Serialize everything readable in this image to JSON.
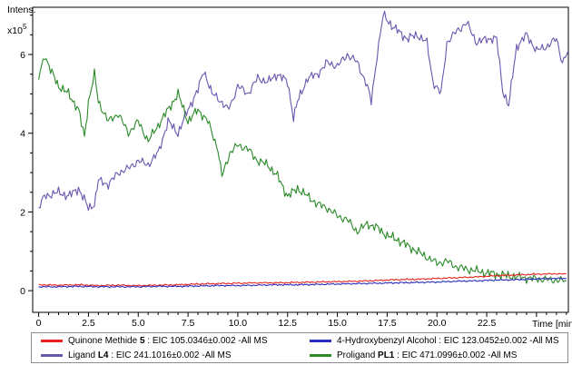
{
  "chart_data": {
    "type": "line",
    "ylabel": "Intens.",
    "y_multiplier": "x10",
    "y_multiplier_exp": "5",
    "xlabel": "Time [min]",
    "xlim": [
      -0.3,
      26.6
    ],
    "ylim": [
      -0.55,
      7.2
    ],
    "x_ticks": [
      "0",
      "2.5",
      "5.0",
      "7.5",
      "10.0",
      "12.5",
      "15.0",
      "17.5",
      "20.0",
      "22.5"
    ],
    "y_ticks": [
      "0",
      "2",
      "4",
      "6"
    ],
    "grid": false,
    "legend_position": "bottom",
    "series": [
      {
        "name": "Quinone Methide 5",
        "legend_parts": [
          "Quinone Methide ",
          "5",
          " : EIC 105.0346±0.002 -All MS"
        ],
        "color": "#e8231f",
        "points": [
          [
            0,
            0.15
          ],
          [
            1,
            0.14
          ],
          [
            2,
            0.15
          ],
          [
            3,
            0.13
          ],
          [
            4,
            0.14
          ],
          [
            5,
            0.13
          ],
          [
            6,
            0.14
          ],
          [
            7,
            0.15
          ],
          [
            8,
            0.17
          ],
          [
            9,
            0.18
          ],
          [
            10,
            0.19
          ],
          [
            11,
            0.2
          ],
          [
            12,
            0.2
          ],
          [
            13,
            0.21
          ],
          [
            14,
            0.22
          ],
          [
            15,
            0.23
          ],
          [
            16,
            0.24
          ],
          [
            17,
            0.26
          ],
          [
            18,
            0.28
          ],
          [
            19,
            0.29
          ],
          [
            20,
            0.31
          ],
          [
            21,
            0.33
          ],
          [
            22,
            0.35
          ],
          [
            23,
            0.38
          ],
          [
            24,
            0.4
          ],
          [
            25,
            0.42
          ],
          [
            26,
            0.43
          ],
          [
            26.5,
            0.42
          ]
        ]
      },
      {
        "name": "4-Hydroxybenzyl Alcohol",
        "legend_parts": [
          "4-Hydroxybenzyl Alcohol : EIC 123.0452±0.002 -All MS"
        ],
        "color": "#2b2bbf",
        "points": [
          [
            0,
            0.1
          ],
          [
            1,
            0.1
          ],
          [
            2,
            0.11
          ],
          [
            3,
            0.1
          ],
          [
            4,
            0.1
          ],
          [
            5,
            0.1
          ],
          [
            6,
            0.11
          ],
          [
            7,
            0.11
          ],
          [
            8,
            0.12
          ],
          [
            9,
            0.13
          ],
          [
            10,
            0.13
          ],
          [
            11,
            0.14
          ],
          [
            12,
            0.15
          ],
          [
            13,
            0.15
          ],
          [
            14,
            0.16
          ],
          [
            15,
            0.17
          ],
          [
            16,
            0.18
          ],
          [
            17,
            0.19
          ],
          [
            18,
            0.2
          ],
          [
            19,
            0.21
          ],
          [
            20,
            0.22
          ],
          [
            21,
            0.24
          ],
          [
            22,
            0.25
          ],
          [
            23,
            0.27
          ],
          [
            24,
            0.28
          ],
          [
            25,
            0.3
          ],
          [
            26,
            0.31
          ],
          [
            26.5,
            0.31
          ]
        ]
      },
      {
        "name": "Ligand L4",
        "legend_parts": [
          "Ligand ",
          "L4",
          " : EIC 241.1016±0.002 -All MS"
        ],
        "color": "#6b56b0",
        "points": [
          [
            0,
            2.1
          ],
          [
            0.3,
            2.4
          ],
          [
            1,
            2.5
          ],
          [
            1.5,
            2.4
          ],
          [
            2,
            2.6
          ],
          [
            2.5,
            2.1
          ],
          [
            2.8,
            2.2
          ],
          [
            3,
            2.8
          ],
          [
            3.5,
            2.7
          ],
          [
            4,
            3.0
          ],
          [
            4.5,
            3.1
          ],
          [
            5,
            3.3
          ],
          [
            5.5,
            3.2
          ],
          [
            6,
            3.5
          ],
          [
            6.5,
            4.3
          ],
          [
            7,
            4.0
          ],
          [
            7.5,
            4.6
          ],
          [
            8,
            5.1
          ],
          [
            8.3,
            5.6
          ],
          [
            8.7,
            5.0
          ],
          [
            9,
            4.9
          ],
          [
            9.5,
            4.6
          ],
          [
            9.7,
            4.8
          ],
          [
            10,
            5.2
          ],
          [
            10.5,
            5.0
          ],
          [
            11,
            5.4
          ],
          [
            11.5,
            5.3
          ],
          [
            12,
            5.5
          ],
          [
            12.5,
            5.3
          ],
          [
            12.8,
            4.4
          ],
          [
            13,
            4.8
          ],
          [
            13.5,
            5.4
          ],
          [
            14,
            5.5
          ],
          [
            14.5,
            5.8
          ],
          [
            15,
            5.7
          ],
          [
            15.5,
            6.0
          ],
          [
            16,
            5.8
          ],
          [
            16.5,
            5.2
          ],
          [
            16.7,
            4.8
          ],
          [
            17,
            6.0
          ],
          [
            17.3,
            7.0
          ],
          [
            17.8,
            6.7
          ],
          [
            18.5,
            6.4
          ],
          [
            19,
            6.5
          ],
          [
            19.5,
            6.3
          ],
          [
            19.8,
            5.3
          ],
          [
            20.2,
            5.0
          ],
          [
            20.5,
            6.3
          ],
          [
            21,
            6.6
          ],
          [
            21.5,
            6.8
          ],
          [
            22,
            6.3
          ],
          [
            22.5,
            6.4
          ],
          [
            23,
            6.4
          ],
          [
            23.3,
            5.1
          ],
          [
            23.6,
            4.7
          ],
          [
            24,
            6.2
          ],
          [
            24.5,
            6.5
          ],
          [
            25,
            6.1
          ],
          [
            25.5,
            6.2
          ],
          [
            26,
            6.4
          ],
          [
            26.3,
            5.8
          ],
          [
            26.6,
            6.1
          ]
        ]
      },
      {
        "name": "Proligand PL1",
        "legend_parts": [
          "Proligand ",
          "PL1",
          " : EIC 471.0996±0.002 -All MS"
        ],
        "color": "#2a8a2a",
        "points": [
          [
            0,
            5.4
          ],
          [
            0.3,
            6.0
          ],
          [
            0.6,
            5.6
          ],
          [
            1,
            5.2
          ],
          [
            1.5,
            5.0
          ],
          [
            2,
            4.6
          ],
          [
            2.3,
            3.9
          ],
          [
            2.5,
            4.8
          ],
          [
            2.8,
            5.5
          ],
          [
            3,
            4.8
          ],
          [
            3.5,
            4.3
          ],
          [
            4,
            4.5
          ],
          [
            4.5,
            4.0
          ],
          [
            5,
            4.3
          ],
          [
            5.5,
            3.8
          ],
          [
            6,
            4.2
          ],
          [
            6.5,
            4.6
          ],
          [
            7,
            5.0
          ],
          [
            7.5,
            4.3
          ],
          [
            8,
            4.6
          ],
          [
            8.5,
            4.3
          ],
          [
            9,
            3.6
          ],
          [
            9.2,
            2.9
          ],
          [
            9.6,
            3.5
          ],
          [
            10,
            3.7
          ],
          [
            10.5,
            3.6
          ],
          [
            11,
            3.3
          ],
          [
            11.5,
            3.2
          ],
          [
            12,
            2.9
          ],
          [
            12.5,
            2.4
          ],
          [
            13,
            2.6
          ],
          [
            13.5,
            2.4
          ],
          [
            14,
            2.2
          ],
          [
            14.5,
            2.1
          ],
          [
            15,
            1.9
          ],
          [
            15.5,
            1.8
          ],
          [
            16,
            1.5
          ],
          [
            16.5,
            1.7
          ],
          [
            17,
            1.6
          ],
          [
            17.5,
            1.4
          ],
          [
            18,
            1.3
          ],
          [
            18.5,
            1.15
          ],
          [
            19,
            1.0
          ],
          [
            19.5,
            0.85
          ],
          [
            20,
            0.7
          ],
          [
            20.5,
            0.75
          ],
          [
            21,
            0.6
          ],
          [
            21.5,
            0.55
          ],
          [
            22,
            0.5
          ],
          [
            22.5,
            0.45
          ],
          [
            23,
            0.42
          ],
          [
            23.5,
            0.38
          ],
          [
            24,
            0.35
          ],
          [
            24.5,
            0.32
          ],
          [
            25,
            0.3
          ],
          [
            25.5,
            0.28
          ],
          [
            26,
            0.27
          ],
          [
            26.5,
            0.25
          ]
        ]
      }
    ]
  }
}
